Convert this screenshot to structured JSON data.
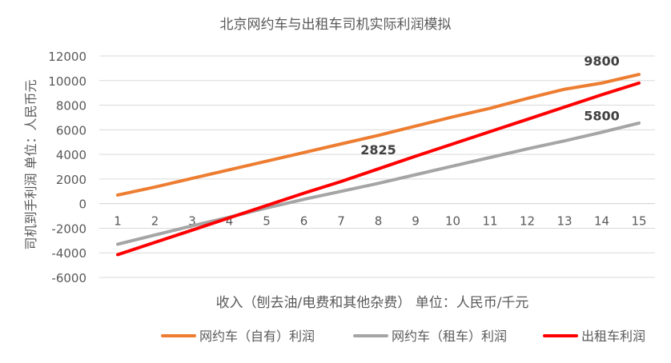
{
  "chart_data": {
    "type": "line",
    "title": "北京网约车与出租车司机实际利润模拟",
    "xlabel": "收入（刨去油/电费和其他杂费） 单位：人民币/千元",
    "ylabel": "司机到手利润 单位：人民币元",
    "x": [
      1,
      2,
      3,
      4,
      5,
      6,
      7,
      8,
      9,
      10,
      11,
      12,
      13,
      14,
      15
    ],
    "ylim": [
      -6000,
      12000
    ],
    "yticks": [
      -6000,
      -4000,
      -2000,
      0,
      2000,
      4000,
      6000,
      8000,
      10000,
      12000
    ],
    "grid": true,
    "legend_position": "bottom",
    "series": [
      {
        "name": "网约车（自有）利润",
        "color": "#ED7D31",
        "values": [
          700,
          1350,
          2050,
          2750,
          3450,
          4150,
          4850,
          5550,
          6300,
          7050,
          7750,
          8550,
          9300,
          9800,
          10500
        ]
      },
      {
        "name": "网约车（租车）利润",
        "color": "#A5A5A5",
        "values": [
          -3300,
          -2550,
          -1800,
          -1100,
          -350,
          350,
          1000,
          1650,
          2350,
          3050,
          3750,
          4450,
          5100,
          5800,
          6550
        ]
      },
      {
        "name": "出租车利润",
        "color": "#FF0000",
        "values": [
          -4150,
          -3150,
          -2150,
          -1150,
          -150,
          850,
          1800,
          2825,
          3850,
          4850,
          5850,
          6850,
          7850,
          8850,
          9800
        ]
      }
    ],
    "annotations": [
      {
        "text": "9800",
        "x": 14,
        "series": 0
      },
      {
        "text": "5800",
        "x": 14,
        "series": 1
      },
      {
        "text": "2825",
        "x": 8,
        "series": 2
      }
    ]
  }
}
